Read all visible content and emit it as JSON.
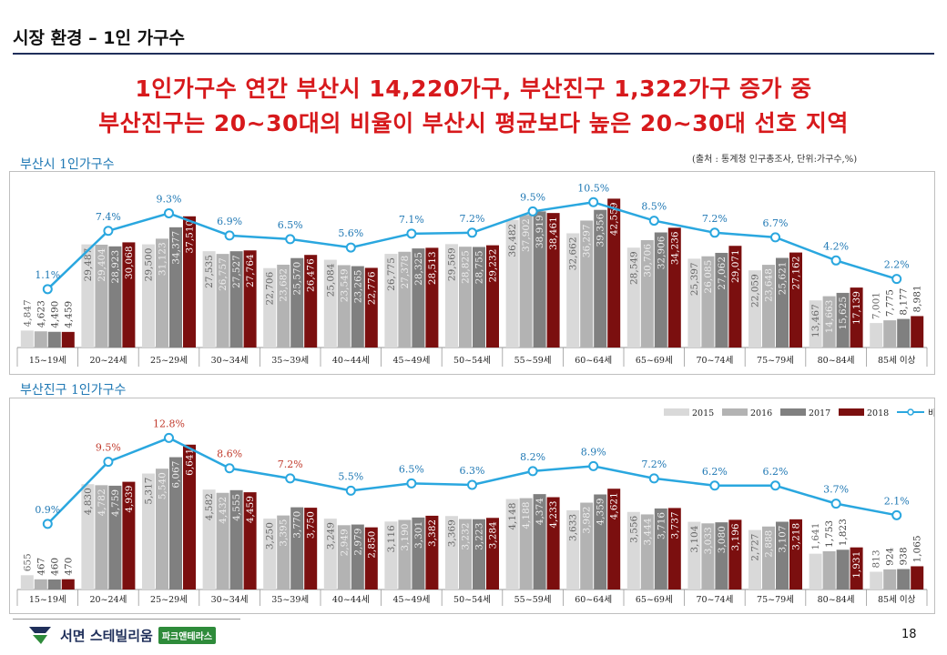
{
  "header": {
    "title": "시장 환경 – 1인 가구수"
  },
  "headline": {
    "line1": "1인가구수 연간 부산시 14,220가구, 부산진구 1,322가구 증가 중",
    "line2": "부산진구는 20~30대의 비율이 부산시 평균보다 높은 20~30대 선호 지역"
  },
  "source_note": "(출처 : 통계청 인구총조사,  단위:가구수,%)",
  "footer": {
    "company": "서면 스테빌리움",
    "badge": "파크앤테라스",
    "page_number": "18"
  },
  "colors": {
    "y2015": "#d9d9d9",
    "y2016": "#b3b3b3",
    "y2017": "#808080",
    "y2018": "#7b0f0f",
    "ratio_line": "#2aa7df",
    "ratio_label_highlight": "#c0392b"
  },
  "chart_data": [
    {
      "type": "bar",
      "title": "부산시 1인가구수",
      "categories": [
        "15~19세",
        "20~24세",
        "25~29세",
        "30~34세",
        "35~39세",
        "40~44세",
        "45~49세",
        "50~54세",
        "55~59세",
        "60~64세",
        "65~69세",
        "70~74세",
        "75~79세",
        "80~84세",
        "85세 이상"
      ],
      "series": [
        {
          "name": "2015",
          "values": [
            4847,
            29487,
            29500,
            27535,
            22706,
            25084,
            26775,
            29569,
            36482,
            32662,
            28549,
            25397,
            22059,
            13467,
            7001
          ]
        },
        {
          "name": "2016",
          "values": [
            4623,
            29404,
            31123,
            26757,
            23682,
            23549,
            27378,
            28825,
            37902,
            36297,
            30706,
            26085,
            23648,
            14663,
            7775
          ]
        },
        {
          "name": "2017",
          "values": [
            4490,
            28923,
            34377,
            27527,
            25570,
            23265,
            28325,
            28755,
            38919,
            39356,
            32906,
            27062,
            25621,
            15625,
            8177
          ]
        },
        {
          "name": "2018",
          "values": [
            4459,
            30068,
            37510,
            27764,
            26476,
            22776,
            28513,
            29232,
            38461,
            42559,
            34236,
            29071,
            27162,
            17139,
            8981
          ]
        }
      ],
      "ratio_series": {
        "name": "비율",
        "values": [
          1.1,
          7.4,
          9.3,
          6.9,
          6.5,
          5.6,
          7.1,
          7.2,
          9.5,
          10.5,
          8.5,
          7.2,
          6.7,
          4.2,
          2.2
        ],
        "labels": [
          "1.1%",
          "7.4%",
          "9.3%",
          "6.9%",
          "6.5%",
          "5.6%",
          "7.1%",
          "7.2%",
          "9.5%",
          "10.5%",
          "8.5%",
          "7.2%",
          "6.7%",
          "4.2%",
          "2.2%"
        ]
      },
      "value_labels": [
        [
          "4,847",
          "4,623",
          "4,490",
          "4,459"
        ],
        [
          "29,487",
          "29,404",
          "28,923",
          "30,068"
        ],
        [
          "29,500",
          "31,123",
          "34,377",
          "37,510"
        ],
        [
          "27,535",
          "26,757",
          "27,527",
          "27,764"
        ],
        [
          "22,706",
          "23,682",
          "25,570",
          "26,476"
        ],
        [
          "25,084",
          "23,549",
          "23,265",
          "22,776"
        ],
        [
          "26,775",
          "27,378",
          "28,325",
          "28,513"
        ],
        [
          "29,569",
          "28,825",
          "28,755",
          "29,232"
        ],
        [
          "36,482",
          "37,902",
          "38,919",
          "38,461"
        ],
        [
          "32,662",
          "36,297",
          "39,356",
          "42,559"
        ],
        [
          "28,549",
          "30,706",
          "32,906",
          "34,236"
        ],
        [
          "25,397",
          "26,085",
          "27,062",
          "29,071"
        ],
        [
          "22,059",
          "23,648",
          "25,621",
          "27,162"
        ],
        [
          "13,467",
          "14,663",
          "15,625",
          "17,139"
        ],
        [
          "7,001",
          "7,775",
          "8,177",
          "8,981"
        ]
      ],
      "ylim": [
        0,
        45000
      ],
      "ratio_ylim": [
        0,
        12
      ],
      "legend": "none"
    },
    {
      "type": "bar",
      "title": "부산진구 1인가구수",
      "categories": [
        "15~19세",
        "20~24세",
        "25~29세",
        "30~34세",
        "35~39세",
        "40~44세",
        "45~49세",
        "50~54세",
        "55~59세",
        "60~64세",
        "65~69세",
        "70~74세",
        "75~79세",
        "80~84세",
        "85세 이상"
      ],
      "series": [
        {
          "name": "2015",
          "values": [
            655,
            4830,
            5317,
            4582,
            3250,
            3249,
            3116,
            3369,
            4148,
            3633,
            3556,
            3104,
            2727,
            1641,
            813
          ]
        },
        {
          "name": "2016",
          "values": [
            467,
            4782,
            5540,
            4432,
            3395,
            2949,
            3190,
            3232,
            4188,
            3982,
            3444,
            3033,
            2888,
            1753,
            924
          ]
        },
        {
          "name": "2017",
          "values": [
            460,
            4759,
            6067,
            4555,
            3770,
            2979,
            3301,
            3223,
            4374,
            4359,
            3716,
            3080,
            3107,
            1823,
            938
          ]
        },
        {
          "name": "2018",
          "values": [
            470,
            4939,
            6641,
            4459,
            3750,
            2850,
            3382,
            3284,
            4233,
            4621,
            3737,
            3196,
            3218,
            1931,
            1065
          ]
        }
      ],
      "ratio_series": {
        "name": "비율",
        "values": [
          0.9,
          9.5,
          12.8,
          8.6,
          7.2,
          5.5,
          6.5,
          6.3,
          8.2,
          8.9,
          7.2,
          6.2,
          6.2,
          3.7,
          2.1
        ],
        "labels": [
          "0.9%",
          "9.5%",
          "12.8%",
          "8.6%",
          "7.2%",
          "5.5%",
          "6.5%",
          "6.3%",
          "8.2%",
          "8.9%",
          "7.2%",
          "6.2%",
          "6.2%",
          "3.7%",
          "2.1%"
        ],
        "highlight": [
          false,
          true,
          true,
          true,
          true,
          false,
          false,
          false,
          false,
          false,
          false,
          false,
          false,
          false,
          false
        ]
      },
      "value_labels": [
        [
          "655",
          "467",
          "460",
          "470"
        ],
        [
          "4,830",
          "4,782",
          "4,759",
          "4,939"
        ],
        [
          "5,317",
          "5,540",
          "6,067",
          "6,641"
        ],
        [
          "4,582",
          "4,432",
          "4,555",
          "4,459"
        ],
        [
          "3,250",
          "3,395",
          "3,770",
          "3,750"
        ],
        [
          "3,249",
          "2,949",
          "2,979",
          "2,850"
        ],
        [
          "3,116",
          "3,190",
          "3,301",
          "3,382"
        ],
        [
          "3,369",
          "3,232",
          "3,223",
          "3,284"
        ],
        [
          "4,148",
          "4,188",
          "4,374",
          "4,233"
        ],
        [
          "3,633",
          "3,982",
          "4,359",
          "4,621"
        ],
        [
          "3,556",
          "3,444",
          "3,716",
          "3,737"
        ],
        [
          "3,104",
          "3,033",
          "3,080",
          "3,196"
        ],
        [
          "2,727",
          "2,888",
          "3,107",
          "3,218"
        ],
        [
          "1,641",
          "1,753",
          "1,823",
          "1,931"
        ],
        [
          "813",
          "924",
          "938",
          "1,065"
        ]
      ],
      "ylim": [
        0,
        7300
      ],
      "ratio_ylim": [
        0,
        16
      ],
      "legend": "top-right",
      "legend_entries": [
        "2015",
        "2016",
        "2017",
        "2018",
        "비율"
      ]
    }
  ]
}
